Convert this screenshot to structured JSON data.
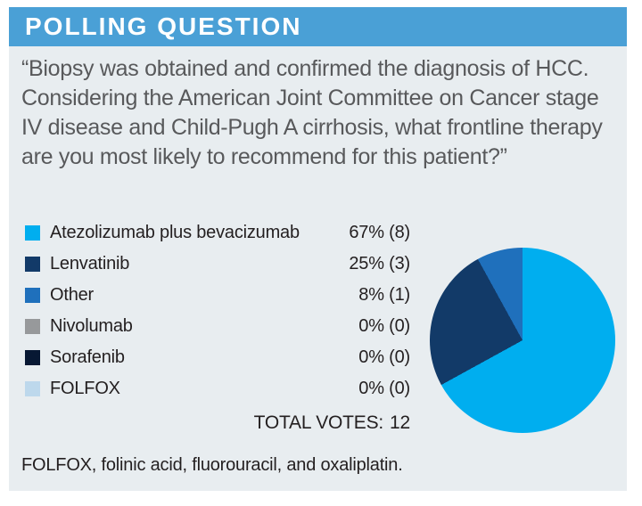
{
  "header": {
    "title": "POLLING QUESTION"
  },
  "question": "“Biopsy was obtained and confirmed the diagnosis of HCC. Considering the American Joint Committee on Cancer stage IV disease and Child-Pugh A cirrhosis, what frontline therapy are you most likely to recommend for this patient?”",
  "poll": {
    "options": [
      {
        "label": "Atezolizumab plus bevacizumab",
        "result": "67% (8)",
        "color": "#00AEEF"
      },
      {
        "label": "Lenvatinib",
        "result": "25% (3)",
        "color": "#123A68"
      },
      {
        "label": "Other",
        "result": "8% (1)",
        "color": "#1F70BC"
      },
      {
        "label": "Nivolumab",
        "result": "0% (0)",
        "color": "#97999B"
      },
      {
        "label": "Sorafenib",
        "result": "0% (0)",
        "color": "#071833"
      },
      {
        "label": "FOLFOX",
        "result": "0% (0)",
        "color": "#BDD8EC"
      }
    ],
    "total_label": "TOTAL VOTES:",
    "total_value": "12"
  },
  "chart_data": {
    "type": "pie",
    "title": "POLLING QUESTION",
    "categories": [
      "Atezolizumab plus bevacizumab",
      "Lenvatinib",
      "Other",
      "Nivolumab",
      "Sorafenib",
      "FOLFOX"
    ],
    "values": [
      67,
      25,
      8,
      0,
      0,
      0
    ],
    "counts": [
      8,
      3,
      1,
      0,
      0,
      0
    ],
    "total_votes": 12,
    "colors": [
      "#00AEEF",
      "#123A68",
      "#1F70BC",
      "#97999B",
      "#071833",
      "#BDD8EC"
    ],
    "start_angle_deg": 0,
    "direction": "clockwise",
    "legend_position": "left"
  },
  "footnote": "FOLFOX, folinic acid, fluorouracil, and oxaliplatin.",
  "colors": {
    "header_bg": "#4AA0D6",
    "body_bg": "#E8EDF0",
    "header_text": "#FFFFFF",
    "question_text": "#58595B",
    "legend_text": "#231F20"
  }
}
